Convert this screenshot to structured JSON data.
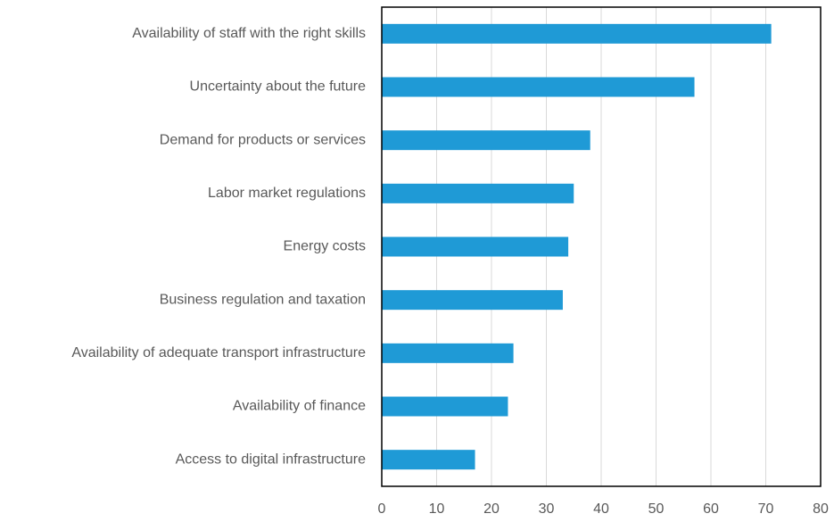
{
  "chart_data": {
    "type": "hbar",
    "categories": [
      "Availability of staff with the right skills",
      "Uncertainty about the future",
      "Demand for products or services",
      "Labor market regulations",
      "Energy costs",
      "Business regulation and taxation",
      "Availability of adequate transport infrastructure",
      "Availability of finance",
      "Access to digital infrastructure"
    ],
    "values": [
      71,
      57,
      38,
      35,
      34,
      33,
      24,
      23,
      17
    ],
    "color": "#1f9ad6",
    "xlim": [
      0,
      80
    ],
    "xticks": [
      0,
      10,
      20,
      30,
      40,
      50,
      60,
      70,
      80
    ],
    "grid": true
  }
}
